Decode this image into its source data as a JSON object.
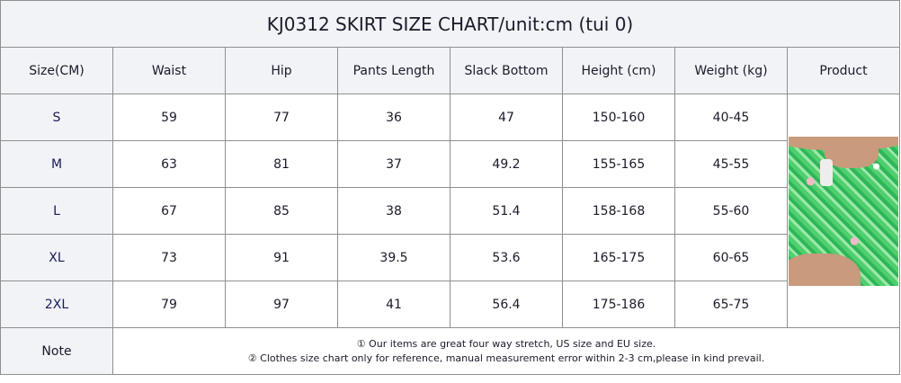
{
  "title": "KJ0312 SKIRT SIZE CHART/unit:cm (tui 0)",
  "headers": [
    "Size(CM)",
    "Waist",
    "Hip",
    "Pants Length",
    "Slack Bottom",
    "Height (cm)",
    "Weight (kg)",
    "Product"
  ],
  "rows": [
    [
      "S",
      "59",
      "77",
      "36",
      "47",
      "150-160",
      "40-45"
    ],
    [
      "M",
      "63",
      "81",
      "37",
      "49.2",
      "155-165",
      "45-55"
    ],
    [
      "L",
      "67",
      "85",
      "38",
      "51.4",
      "158-168",
      "55-60"
    ],
    [
      "XL",
      "73",
      "91",
      "39.5",
      "53.6",
      "165-175",
      "60-65"
    ],
    [
      "2XL",
      "79",
      "97",
      "41",
      "56.4",
      "175-186",
      "65-75"
    ]
  ],
  "note_label": "Note",
  "notes": [
    "① Our items are great four way stretch, US size and EU size.",
    "② Clothes size chart only for reference, manual measurement error within 2-3 cm,please in kind prevail."
  ],
  "colors": {
    "header_bg": "#f2f3f7",
    "border": "#8f8f8f",
    "size_text": "#1a1a5a"
  }
}
